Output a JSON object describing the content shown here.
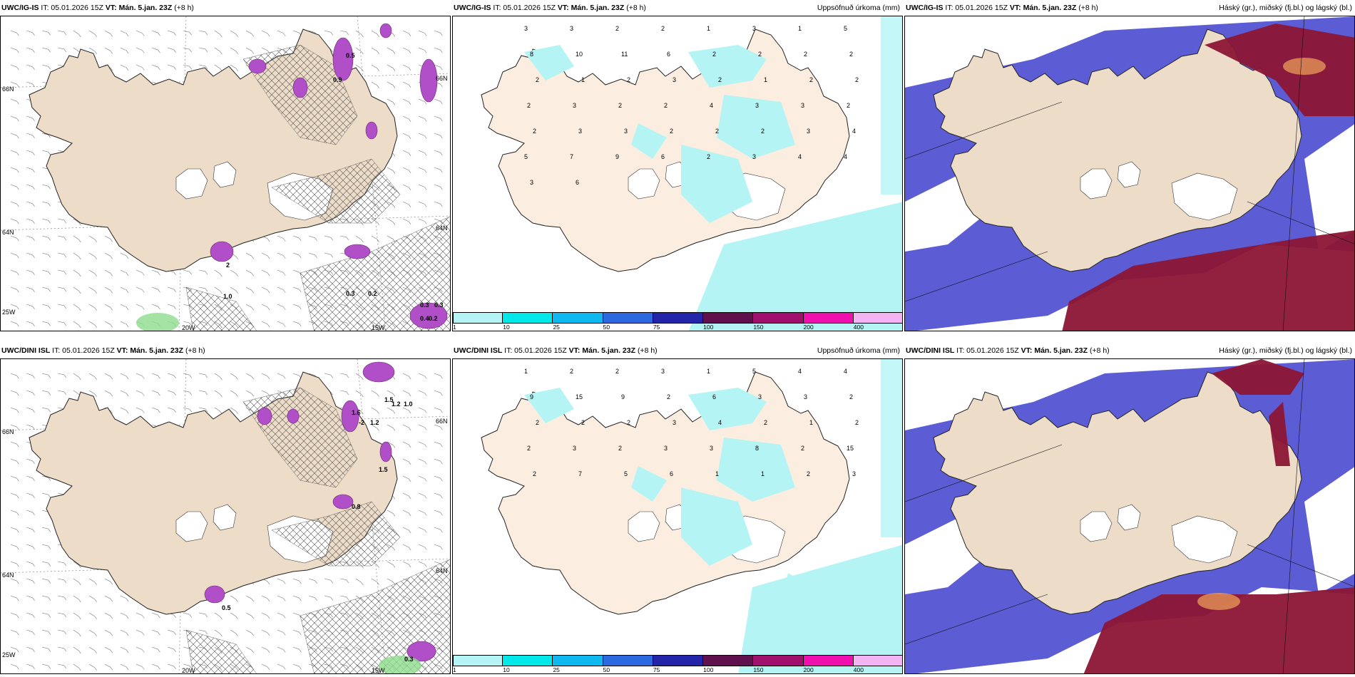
{
  "panels": [
    {
      "id": "p1",
      "model": "UWC/IG-IS",
      "init": "IT: 05.01.2026 15Z",
      "valid": "VT: Mán. 5.jan. 23Z",
      "lead": "(+8 h)",
      "right_title": "",
      "kind": "wind"
    },
    {
      "id": "p2",
      "model": "UWC/IG-IS",
      "init": "IT: 05.01.2026 15Z",
      "valid": "VT: Mán. 5.jan. 23Z",
      "lead": "(+8 h)",
      "right_title": "Uppsöfnuð úrkoma (mm)",
      "kind": "precip"
    },
    {
      "id": "p3",
      "model": "UWC/IG-IS",
      "init": "IT: 05.01.2026 15Z",
      "valid": "VT: Mán. 5.jan. 23Z",
      "lead": "(+8 h)",
      "right_title": "Háský (gr.), miðský (fj.bl.) og lágský (bl.)",
      "kind": "cloud"
    },
    {
      "id": "p4",
      "model": "UWC/DINI ISL",
      "init": "IT: 05.01.2026 15Z",
      "valid": "VT: Mán. 5.jan. 23Z",
      "lead": "(+8 h)",
      "right_title": "",
      "kind": "wind"
    },
    {
      "id": "p5",
      "model": "UWC/DINI ISL",
      "init": "IT: 05.01.2026 15Z",
      "valid": "VT: Mán. 5.jan. 23Z",
      "lead": "(+8 h)",
      "right_title": "Uppsöfnuð úrkoma (mm)",
      "kind": "precip"
    },
    {
      "id": "p6",
      "model": "UWC/DINI ISL",
      "init": "IT: 05.01.2026 15Z",
      "valid": "VT: Mán. 5.jan. 23Z",
      "lead": "(+8 h)",
      "right_title": "Háský (gr.), miðský (fj.bl.) og lágský (bl.)",
      "kind": "cloud"
    }
  ],
  "colorbar": {
    "ticks": [
      "1",
      "10",
      "25",
      "50",
      "75",
      "100",
      "150",
      "200",
      "400"
    ],
    "colors": [
      "#b4f4f4",
      "#00e8e8",
      "#10b8f0",
      "#2c68e0",
      "#2424a8",
      "#60104c",
      "#a0106c",
      "#f010b0",
      "#f4b4f4"
    ]
  },
  "grid_labels": {
    "lat_66": "66N",
    "lat_64": "64N",
    "lon_25": "25W",
    "lon_20": "20W",
    "lon_15": "15W"
  },
  "wind_panel_values": {
    "top": [
      "0.5",
      "0.9",
      "1.0",
      "0.3",
      "0.2",
      "0.3",
      "0.3",
      "0.4",
      "0.2",
      "2"
    ],
    "bottom": [
      "1.5",
      "1.6",
      "-2",
      "1.2",
      "1.2",
      "1.0",
      "1.5",
      "0.8",
      "0.3",
      "0.5"
    ]
  },
  "precip_values": {
    "top": [
      "3",
      "3",
      "2",
      "2",
      "1",
      "3",
      "1",
      "5",
      "8",
      "10",
      "11",
      "6",
      "2",
      "2",
      "2",
      "2",
      "2",
      "1",
      "2",
      "3",
      "2",
      "1",
      "2",
      "2",
      "2",
      "3",
      "2",
      "2",
      "4",
      "3",
      "3",
      "2",
      "2",
      "3",
      "3",
      "2",
      "2",
      "2",
      "3",
      "4",
      "5",
      "7",
      "9",
      "6",
      "2",
      "3",
      "4",
      "4",
      "3",
      "6"
    ],
    "bottom": [
      "1",
      "2",
      "2",
      "3",
      "1",
      "5",
      "4",
      "4",
      "9",
      "15",
      "9",
      "2",
      "6",
      "3",
      "3",
      "2",
      "2",
      "2",
      "2",
      "3",
      "4",
      "2",
      "1",
      "2",
      "2",
      "3",
      "2",
      "3",
      "3",
      "8",
      "2",
      "15",
      "2",
      "7",
      "5",
      "6",
      "1",
      "1",
      "2",
      "3"
    ]
  }
}
